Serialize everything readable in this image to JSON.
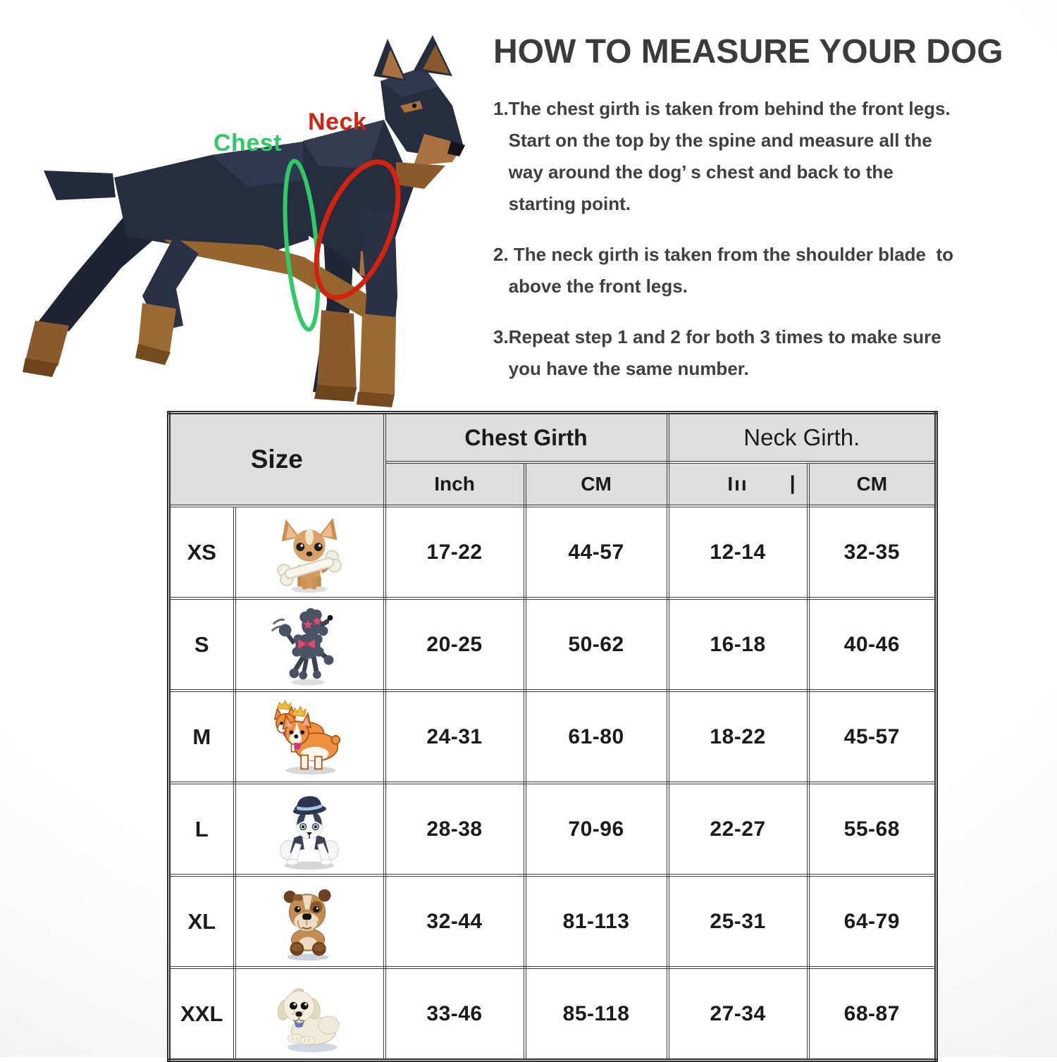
{
  "diagram": {
    "chest_label": "Chest",
    "neck_label": "Neck",
    "illustration": "doberman-side-view"
  },
  "colors": {
    "chest_accent": "#2fc967",
    "neck_accent": "#d3230f",
    "header_bg": "#dedede",
    "table_border": "#3c3c3c",
    "title_text": "#3b3b3b",
    "dog_body": "#262d3e",
    "dog_tan": "#a9713f"
  },
  "instructions": {
    "title": "HOW TO MEASURE YOUR DOG",
    "steps": [
      {
        "lines": [
          "1.The chest girth is taken from behind the front legs.",
          "   Start on the top by the spine and measure all the",
          "   way around the dog’ s chest and back to the",
          "   starting point."
        ]
      },
      {
        "lines": [
          "2. The neck girth is taken from the shoulder blade  to",
          "   above the front legs."
        ]
      },
      {
        "lines": [
          "3.Repeat step 1 and 2 for both 3 times to make sure",
          "   you have the same number."
        ]
      }
    ]
  },
  "table": {
    "header": {
      "size": "Size",
      "chest": "Chest Girth",
      "neck": "Neck Girth.",
      "chest_inch": "Inch",
      "chest_cm": "CM",
      "neck_inch_fragment": "Iıı",
      "neck_inch_bar": "|",
      "neck_cm": "CM"
    },
    "rows": [
      {
        "size": "XS",
        "illustration": "chihuahua-with-bone",
        "chest_inch": "17-22",
        "chest_cm": "44-57",
        "neck_inch": "12-14",
        "neck_cm": "32-35"
      },
      {
        "size": "S",
        "illustration": "poodle",
        "chest_inch": "20-25",
        "chest_cm": "50-62",
        "neck_inch": "16-18",
        "neck_cm": "40-46"
      },
      {
        "size": "M",
        "illustration": "corgis",
        "chest_inch": "24-31",
        "chest_cm": "61-80",
        "neck_inch": "18-22",
        "neck_cm": "45-57"
      },
      {
        "size": "L",
        "illustration": "husky-with-hat",
        "chest_inch": "28-38",
        "chest_cm": "70-96",
        "neck_inch": "22-27",
        "neck_cm": "55-68"
      },
      {
        "size": "XL",
        "illustration": "bulldog",
        "chest_inch": "32-44",
        "chest_cm": "81-113",
        "neck_inch": "25-31",
        "neck_cm": "64-79"
      },
      {
        "size": "XXL",
        "illustration": "puppy-lying",
        "chest_inch": "33-46",
        "chest_cm": "85-118",
        "neck_inch": "27-34",
        "neck_cm": "68-87"
      }
    ]
  }
}
